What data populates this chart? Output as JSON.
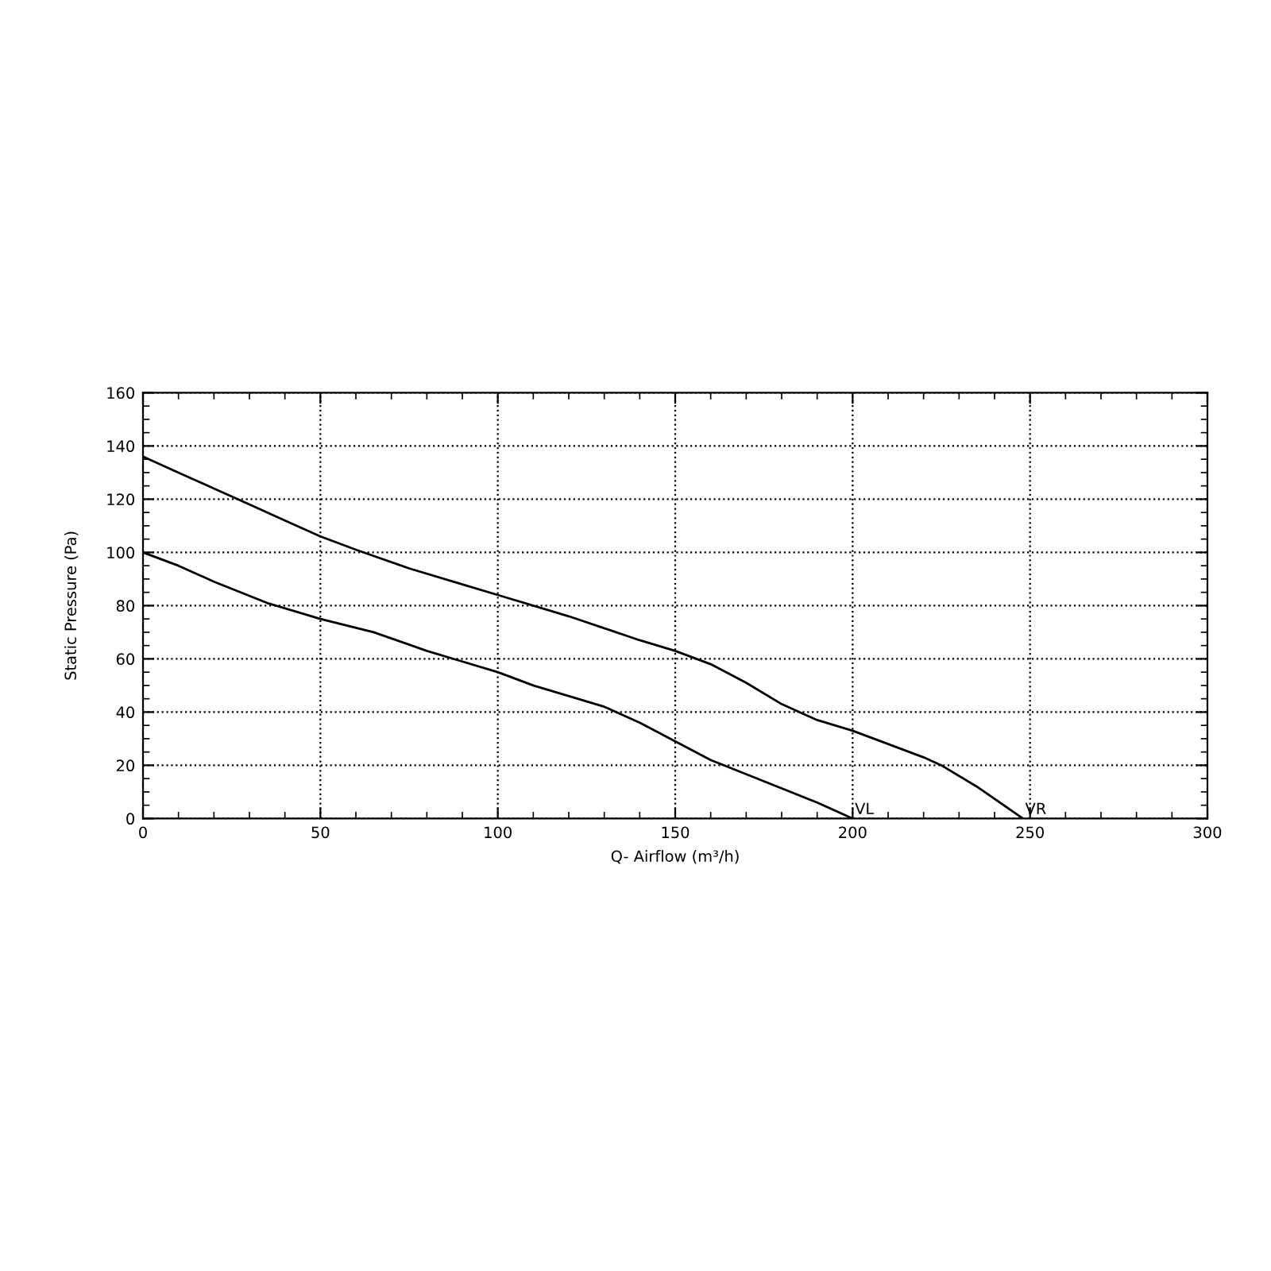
{
  "chart_data": {
    "type": "line",
    "xlabel": "Q- Airflow (m³/h)",
    "ylabel": "Static Pressure (Pa)",
    "xlim": [
      0,
      300
    ],
    "xticks": [
      0,
      50,
      100,
      150,
      200,
      250,
      300
    ],
    "ylim": [
      0,
      160
    ],
    "yticks": [
      0,
      20,
      40,
      60,
      80,
      100,
      120,
      140,
      160
    ],
    "grid": true,
    "marker": "none",
    "series": [
      {
        "color": "#000000",
        "x": [
          0,
          10,
          20,
          30,
          40,
          50,
          60,
          75,
          90,
          100,
          120,
          140,
          150,
          160,
          170,
          180,
          190,
          200,
          210,
          220,
          225,
          235,
          248
        ],
        "values": [
          136,
          130,
          124,
          118,
          112,
          106,
          101,
          94,
          88,
          84,
          76,
          67,
          63,
          58,
          51,
          43,
          37,
          33,
          28,
          23,
          20,
          12,
          0
        ]
      },
      {
        "color": "#000000",
        "x": [
          0,
          10,
          20,
          35,
          50,
          65,
          80,
          90,
          100,
          110,
          130,
          140,
          150,
          160,
          175,
          190,
          200
        ],
        "values": [
          100,
          95,
          89,
          81,
          75,
          70,
          63,
          59,
          55,
          50,
          42,
          36,
          29,
          22,
          14,
          6,
          0
        ]
      }
    ],
    "annotations": [
      {
        "text": "VL",
        "x": 200,
        "y": 0
      },
      {
        "text": "VR",
        "x": 248,
        "y": 0
      }
    ]
  }
}
